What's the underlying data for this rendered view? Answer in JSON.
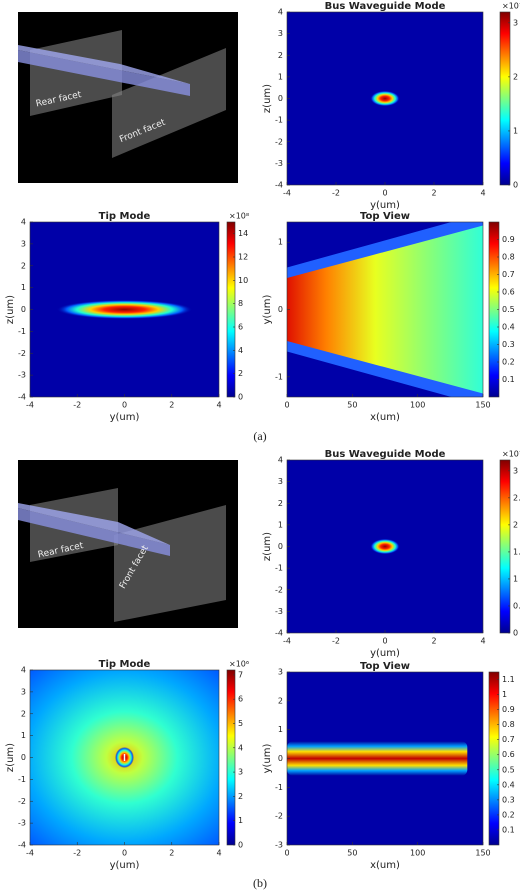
{
  "chart_data": [
    {
      "type": "heatmap",
      "title": "Bus Waveguide Mode",
      "xlabel": "y(um)",
      "ylabel": "z(um)",
      "xlim": [
        -4,
        4
      ],
      "ylim": [
        -4,
        4
      ],
      "xticks": [
        -4,
        -2,
        0,
        2,
        4
      ],
      "yticks": [
        -4,
        -3,
        -2,
        -1,
        0,
        1,
        2,
        3,
        4
      ],
      "clim": [
        0,
        3.2
      ],
      "cticks": [
        0,
        1,
        2,
        3
      ],
      "cmultiplier": "×10⁷",
      "colormap": "jet"
    },
    {
      "type": "heatmap",
      "title": "Tip Mode",
      "xlabel": "y(um)",
      "ylabel": "z(um)",
      "xlim": [
        -4,
        4
      ],
      "ylim": [
        -4,
        4
      ],
      "xticks": [
        -4,
        -2,
        0,
        2,
        4
      ],
      "yticks": [
        -4,
        -3,
        -2,
        -1,
        0,
        1,
        2,
        3,
        4
      ],
      "clim": [
        0,
        15
      ],
      "cticks": [
        0,
        2,
        4,
        6,
        8,
        10,
        12,
        14
      ],
      "cmultiplier": "×10⁸",
      "colormap": "jet"
    },
    {
      "type": "heatmap",
      "title": "Top View",
      "xlabel": "x(um)",
      "ylabel": "y(um)",
      "xlim": [
        0,
        150
      ],
      "ylim": [
        -1.3,
        1.3
      ],
      "xticks": [
        0,
        50,
        100,
        150
      ],
      "yticks": [
        -1,
        0,
        1
      ],
      "clim": [
        0,
        1
      ],
      "cticks": [
        0.1,
        0.2,
        0.3,
        0.4,
        0.5,
        0.6,
        0.7,
        0.8,
        0.9
      ],
      "colormap": "jet"
    },
    {
      "type": "heatmap",
      "title": "Bus Waveguide Mode",
      "xlabel": "y(um)",
      "ylabel": "z(um)",
      "xlim": [
        -4,
        4
      ],
      "ylim": [
        -4,
        4
      ],
      "xticks": [
        -4,
        -2,
        0,
        2,
        4
      ],
      "yticks": [
        -4,
        -3,
        -2,
        -1,
        0,
        1,
        2,
        3,
        4
      ],
      "clim": [
        0,
        3.2
      ],
      "cticks": [
        0,
        0.5,
        1,
        1.5,
        2,
        2.5,
        3
      ],
      "cmultiplier": "×10⁷",
      "colormap": "jet"
    },
    {
      "type": "heatmap",
      "title": "Tip Mode",
      "xlabel": "y(um)",
      "ylabel": "z(um)",
      "xlim": [
        -4,
        4
      ],
      "ylim": [
        -4,
        4
      ],
      "xticks": [
        -4,
        -2,
        0,
        2,
        4
      ],
      "yticks": [
        -4,
        -3,
        -2,
        -1,
        0,
        1,
        2,
        3,
        4
      ],
      "clim": [
        0,
        7.2
      ],
      "cticks": [
        0,
        1,
        2,
        3,
        4,
        5,
        6,
        7
      ],
      "cmultiplier": "×10⁶",
      "colormap": "jet"
    },
    {
      "type": "heatmap",
      "title": "Top View",
      "xlabel": "x(um)",
      "ylabel": "y(um)",
      "xlim": [
        0,
        150
      ],
      "ylim": [
        -3,
        3
      ],
      "xticks": [
        0,
        50,
        100,
        150
      ],
      "yticks": [
        -3,
        -2,
        -1,
        0,
        1,
        2,
        3
      ],
      "clim": [
        0,
        1.15
      ],
      "cticks": [
        0.1,
        0.2,
        0.3,
        0.4,
        0.5,
        0.6,
        0.7,
        0.8,
        0.9,
        1,
        1.1
      ],
      "colormap": "jet"
    }
  ],
  "illustrations": [
    {
      "rear": "Rear facet",
      "front": "Front facet"
    },
    {
      "rear": "Rear facet",
      "front": "Front facet"
    }
  ],
  "captions": [
    "(a)",
    "(b)"
  ]
}
